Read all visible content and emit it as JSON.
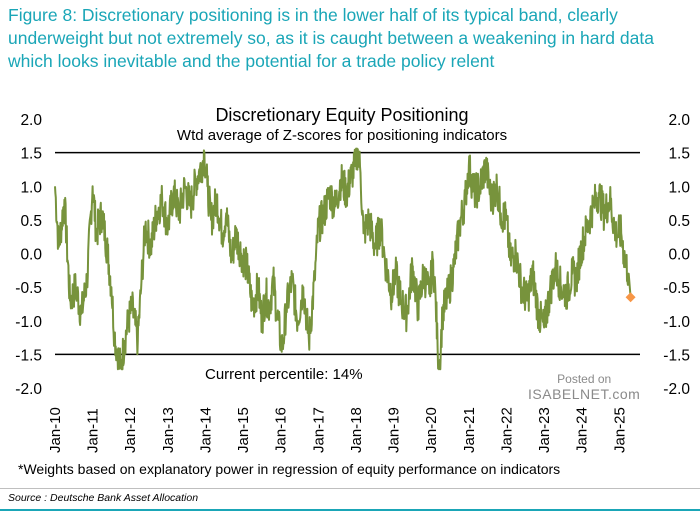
{
  "caption": "Figure 8: Discretionary positioning is in the lower half of its typical band, clearly underweight but not extremely so, as it is caught between a weakening in hard data which looks inevitable and the potential for a trade policy relent",
  "footnote": "*Weights based on explanatory power in regression of equity performance on indicators",
  "source": "Source : Deutsche Bank Asset Allocation",
  "watermark": {
    "line1": "Posted on",
    "line2": "ISABELNET.com"
  },
  "colors": {
    "caption": "#1aa6b7",
    "series": "#77933c",
    "current_marker": "#f79646",
    "band": "#000000"
  },
  "chart_data": {
    "type": "line",
    "title": "Discretionary Equity Positioning",
    "subtitle": "Wtd average of Z-scores for positioning indicators",
    "annotation": "Current percentile: 14%",
    "ylim": [
      -2.0,
      2.0
    ],
    "y_ticks": [
      "2.0",
      "1.5",
      "1.0",
      "0.5",
      "0.0",
      "-0.5",
      "-1.0",
      "-1.5",
      "-2.0"
    ],
    "y_tick_values": [
      2.0,
      1.5,
      1.0,
      0.5,
      0.0,
      -0.5,
      -1.0,
      -1.5,
      -2.0
    ],
    "x_ticks": [
      "Jan-10",
      "Jan-11",
      "Jan-12",
      "Jan-13",
      "Jan-14",
      "Jan-15",
      "Jan-16",
      "Jan-17",
      "Jan-18",
      "Jan-19",
      "Jan-20",
      "Jan-21",
      "Jan-22",
      "Jan-23",
      "Jan-24",
      "Jan-25"
    ],
    "x_range": [
      2010.0,
      2025.55
    ],
    "band_lines": [
      1.5,
      -1.5
    ],
    "series": [
      {
        "name": "Discretionary Equity Positioning",
        "x": [
          2010.0,
          2010.1,
          2010.25,
          2010.4,
          2010.55,
          2010.7,
          2010.85,
          2011.0,
          2011.1,
          2011.25,
          2011.4,
          2011.5,
          2011.58,
          2011.66,
          2011.75,
          2011.85,
          2011.95,
          2012.05,
          2012.2,
          2012.3,
          2012.4,
          2012.55,
          2012.7,
          2012.85,
          2013.0,
          2013.15,
          2013.3,
          2013.45,
          2013.6,
          2013.75,
          2013.9,
          2013.97,
          2014.05,
          2014.15,
          2014.3,
          2014.45,
          2014.55,
          2014.7,
          2014.8,
          2014.95,
          2015.1,
          2015.25,
          2015.4,
          2015.5,
          2015.6,
          2015.7,
          2015.8,
          2015.9,
          2016.0,
          2016.05,
          2016.15,
          2016.3,
          2016.45,
          2016.6,
          2016.75,
          2016.9,
          2017.0,
          2017.15,
          2017.3,
          2017.45,
          2017.6,
          2017.75,
          2017.9,
          2017.98,
          2018.05,
          2018.12,
          2018.2,
          2018.35,
          2018.5,
          2018.65,
          2018.8,
          2018.95,
          2019.05,
          2019.2,
          2019.35,
          2019.5,
          2019.65,
          2019.8,
          2019.95,
          2020.05,
          2020.12,
          2020.17,
          2020.22,
          2020.3,
          2020.45,
          2020.6,
          2020.75,
          2020.9,
          2021.0,
          2021.15,
          2021.3,
          2021.45,
          2021.6,
          2021.75,
          2021.85,
          2022.0,
          2022.1,
          2022.25,
          2022.4,
          2022.55,
          2022.7,
          2022.85,
          2023.0,
          2023.15,
          2023.3,
          2023.45,
          2023.6,
          2023.75,
          2023.85,
          2024.0,
          2024.15,
          2024.3,
          2024.45,
          2024.6,
          2024.75,
          2024.9,
          2025.05,
          2025.15,
          2025.25
        ],
        "values": [
          1.0,
          0.1,
          0.8,
          -0.7,
          -0.5,
          -0.9,
          -0.4,
          1.0,
          0.3,
          0.6,
          0.0,
          -0.5,
          -1.2,
          -1.5,
          -1.7,
          -1.3,
          -1.0,
          -0.8,
          -1.3,
          -0.4,
          0.4,
          0.1,
          0.6,
          0.8,
          0.4,
          0.9,
          0.6,
          1.0,
          0.7,
          1.1,
          1.3,
          1.5,
          1.0,
          0.5,
          0.8,
          0.3,
          0.6,
          -0.1,
          0.3,
          0.0,
          -0.2,
          -0.8,
          -0.5,
          -1.0,
          -0.6,
          -0.8,
          -0.4,
          -0.9,
          -1.3,
          -1.4,
          -0.8,
          -0.4,
          -1.0,
          -0.5,
          -1.3,
          -0.4,
          0.4,
          0.6,
          0.9,
          0.7,
          1.1,
          0.9,
          1.2,
          1.3,
          1.55,
          1.2,
          0.3,
          0.5,
          0.1,
          0.4,
          -0.2,
          -0.6,
          -0.3,
          -0.7,
          -0.9,
          -0.2,
          -0.8,
          -0.3,
          -0.6,
          -0.1,
          -0.7,
          -1.4,
          -1.7,
          -0.9,
          -0.6,
          -0.2,
          0.4,
          0.8,
          1.3,
          0.9,
          1.0,
          1.3,
          0.8,
          1.0,
          0.6,
          0.5,
          -0.1,
          0.0,
          -0.5,
          -0.7,
          -0.3,
          -0.9,
          -1.1,
          -0.6,
          -0.2,
          -0.5,
          -0.6,
          -0.3,
          -0.4,
          0.1,
          0.4,
          0.7,
          0.9,
          0.6,
          0.8,
          0.3,
          0.3,
          -0.1,
          -0.3
        ]
      }
    ],
    "current_point": {
      "x": 2025.3,
      "value": -0.65
    }
  }
}
